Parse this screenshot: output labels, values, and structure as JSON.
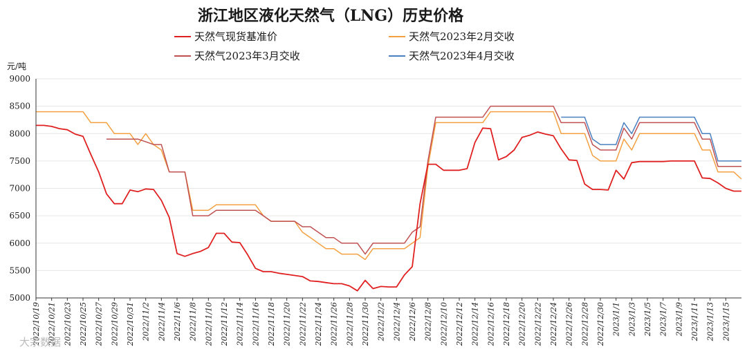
{
  "chart_data": {
    "type": "line",
    "title": "浙江地区液化天然气（LNG）历史价格",
    "ylabel": "元/吨",
    "ylim": [
      5000,
      9000
    ],
    "yticks": [
      5000,
      5500,
      6000,
      6500,
      7000,
      7500,
      8000,
      8500,
      9000
    ],
    "grid": true,
    "legend_position": "top",
    "x_tick_labels": [
      "2022/10/19",
      "2022/10/21",
      "2022/10/23",
      "2022/10/25",
      "2022/10/27",
      "2022/10/29",
      "2022/10/31",
      "2022/11/2",
      "2022/11/4",
      "2022/11/6",
      "2022/11/8",
      "2022/11/10",
      "2022/11/12",
      "2022/11/14",
      "2022/11/16",
      "2022/11/18",
      "2022/11/20",
      "2022/11/22",
      "2022/11/24",
      "2022/11/26",
      "2022/11/28",
      "2022/11/30",
      "2022/12/2",
      "2022/12/4",
      "2022/12/6",
      "2022/12/8",
      "2022/12/10",
      "2022/12/12",
      "2022/12/14",
      "2022/12/16",
      "2022/12/18",
      "2022/12/20",
      "2022/12/22",
      "2022/12/24",
      "2022/12/26",
      "2022/12/28",
      "2022/12/30",
      "2023/1/1",
      "2023/1/3",
      "2023/1/5",
      "2023/1/7",
      "2023/1/9",
      "2023/1/11",
      "2023/1/13",
      "2023/1/15"
    ],
    "series": [
      {
        "name": "天然气现货基准价",
        "color": "#e02020",
        "values": [
          8150,
          8150,
          8130,
          8090,
          8070,
          7990,
          7950,
          7620,
          7300,
          6900,
          6720,
          6720,
          6970,
          6940,
          6990,
          6980,
          6780,
          6470,
          5810,
          5760,
          5810,
          5850,
          5920,
          6180,
          6180,
          6020,
          6010,
          5790,
          5540,
          5480,
          5480,
          5450,
          5430,
          5410,
          5390,
          5310,
          5300,
          5280,
          5260,
          5260,
          5220,
          5130,
          5320,
          5170,
          5210,
          5200,
          5200,
          5420,
          5570,
          6720,
          7440,
          7440,
          7330,
          7330,
          7330,
          7360,
          7840,
          8100,
          8090,
          7520,
          7580,
          7700,
          7930,
          7970,
          8030,
          7990,
          7960,
          7720,
          7520,
          7510,
          7080,
          6980,
          6980,
          6970,
          7330,
          7170,
          7470,
          7490,
          7490,
          7490,
          7490,
          7500,
          7500,
          7500,
          7500,
          7190,
          7180,
          7100,
          7000,
          6950,
          6950
        ]
      },
      {
        "name": "天然气2023年2月交收",
        "color": "#f4a040",
        "values": [
          8400,
          8400,
          8400,
          8400,
          8400,
          8400,
          8400,
          8200,
          8200,
          8200,
          8000,
          8000,
          8000,
          7800,
          8000,
          7800,
          7700,
          7300,
          7300,
          7300,
          6600,
          6600,
          6600,
          6700,
          6700,
          6700,
          6700,
          6700,
          6700,
          6500,
          6400,
          6400,
          6400,
          6400,
          6200,
          6100,
          6000,
          5900,
          5900,
          5800,
          5800,
          5800,
          5700,
          5900,
          5900,
          5900,
          5900,
          5900,
          6000,
          6100,
          7400,
          8200,
          8200,
          8200,
          8200,
          8200,
          8200,
          8200,
          8400,
          8400,
          8400,
          8400,
          8400,
          8400,
          8400,
          8400,
          8400,
          8000,
          8000,
          8000,
          8000,
          7600,
          7500,
          7500,
          7500,
          7900,
          7700,
          8000,
          8000,
          8000,
          8000,
          8000,
          8000,
          8000,
          8000,
          7700,
          7700,
          7300,
          7300,
          7300,
          7170
        ]
      },
      {
        "name": "天然气2023年3月交收",
        "color": "#c05050",
        "values": [
          null,
          null,
          null,
          null,
          null,
          null,
          null,
          null,
          null,
          7900,
          7900,
          7900,
          7900,
          7900,
          7850,
          7800,
          7800,
          7300,
          7300,
          7300,
          6500,
          6500,
          6500,
          6600,
          6600,
          6600,
          6600,
          6600,
          6600,
          6500,
          6400,
          6400,
          6400,
          6400,
          6300,
          6300,
          6200,
          6100,
          6100,
          6000,
          6000,
          6000,
          5800,
          6000,
          6000,
          6000,
          6000,
          6000,
          6200,
          6300,
          7500,
          8300,
          8300,
          8300,
          8300,
          8300,
          8300,
          8300,
          8500,
          8500,
          8500,
          8500,
          8500,
          8500,
          8500,
          8500,
          8500,
          8200,
          8200,
          8200,
          8200,
          7800,
          7700,
          7700,
          7700,
          8100,
          7900,
          8200,
          8200,
          8200,
          8200,
          8200,
          8200,
          8200,
          8200,
          7900,
          7900,
          7400,
          7400,
          7400,
          7400
        ]
      },
      {
        "name": "天然气2023年4月交收",
        "color": "#4a80c0",
        "values": [
          null,
          null,
          null,
          null,
          null,
          null,
          null,
          null,
          null,
          null,
          null,
          null,
          null,
          null,
          null,
          null,
          null,
          null,
          null,
          null,
          null,
          null,
          null,
          null,
          null,
          null,
          null,
          null,
          null,
          null,
          null,
          null,
          null,
          null,
          null,
          null,
          null,
          null,
          null,
          null,
          null,
          null,
          null,
          null,
          null,
          null,
          null,
          null,
          null,
          null,
          null,
          null,
          null,
          null,
          null,
          null,
          null,
          null,
          null,
          null,
          null,
          null,
          null,
          null,
          null,
          null,
          null,
          8300,
          8300,
          8300,
          8300,
          7900,
          7800,
          7800,
          7800,
          8200,
          8000,
          8300,
          8300,
          8300,
          8300,
          8300,
          8300,
          8300,
          8300,
          8000,
          8000,
          7500,
          7500,
          7500,
          7500
        ]
      }
    ]
  },
  "watermark": "大宗数据"
}
